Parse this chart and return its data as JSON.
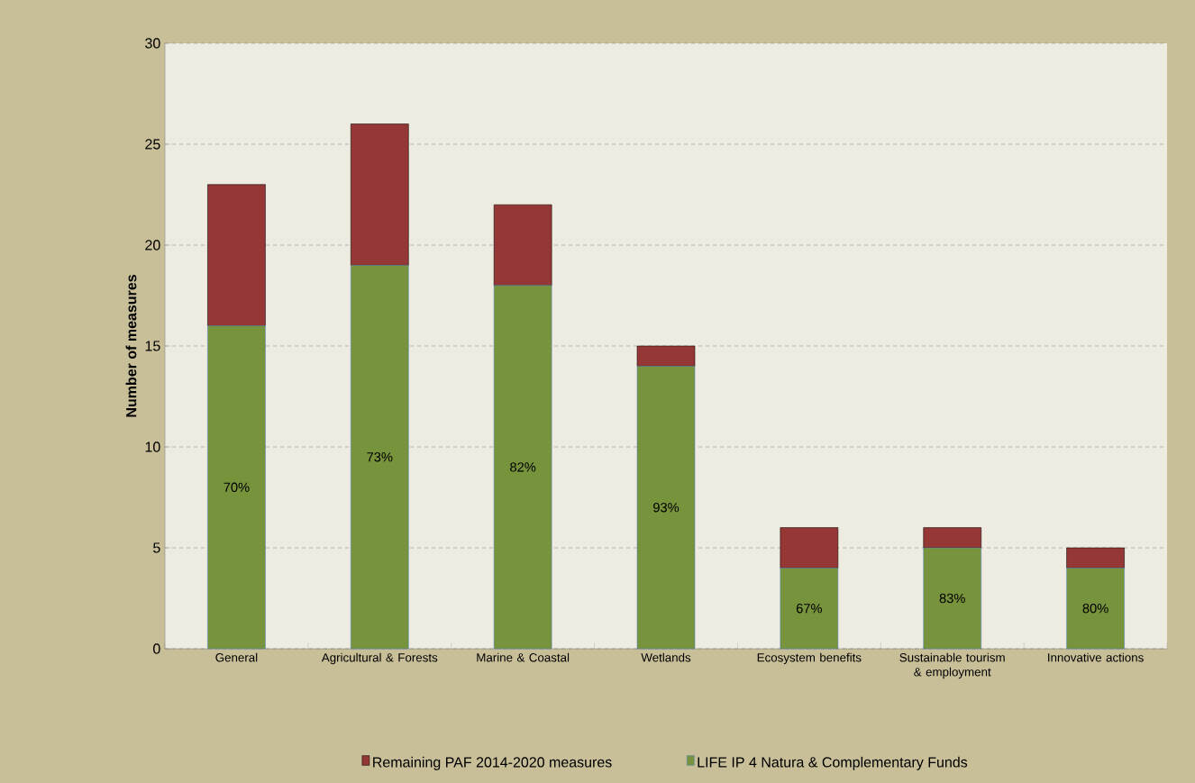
{
  "chart_data": {
    "type": "bar",
    "stacked": true,
    "ylabel": "Number of measures",
    "categories": [
      "General",
      "Agricultural & Forests",
      "Marine & Coastal",
      "Wetlands",
      "Ecosystem benefits",
      "Sustainable tourism & employment",
      "Innovative actions"
    ],
    "series": [
      {
        "name": "LIFE IP 4 Natura & Complementary Funds",
        "color": "#77933c",
        "values": [
          16,
          19,
          18,
          14,
          4,
          5,
          4
        ]
      },
      {
        "name": "Remaining PAF 2014-2020 measures",
        "color": "#953735",
        "values": [
          7,
          7,
          4,
          1,
          2,
          1,
          1
        ]
      }
    ],
    "ylim": [
      0,
      30
    ],
    "yticks": [
      0,
      5,
      10,
      15,
      20,
      25,
      30
    ],
    "grid": "y",
    "legend": "bottom",
    "annotations": [
      "70%",
      "73%",
      "82%",
      "93%",
      "67%",
      "83%",
      "80%"
    ]
  }
}
